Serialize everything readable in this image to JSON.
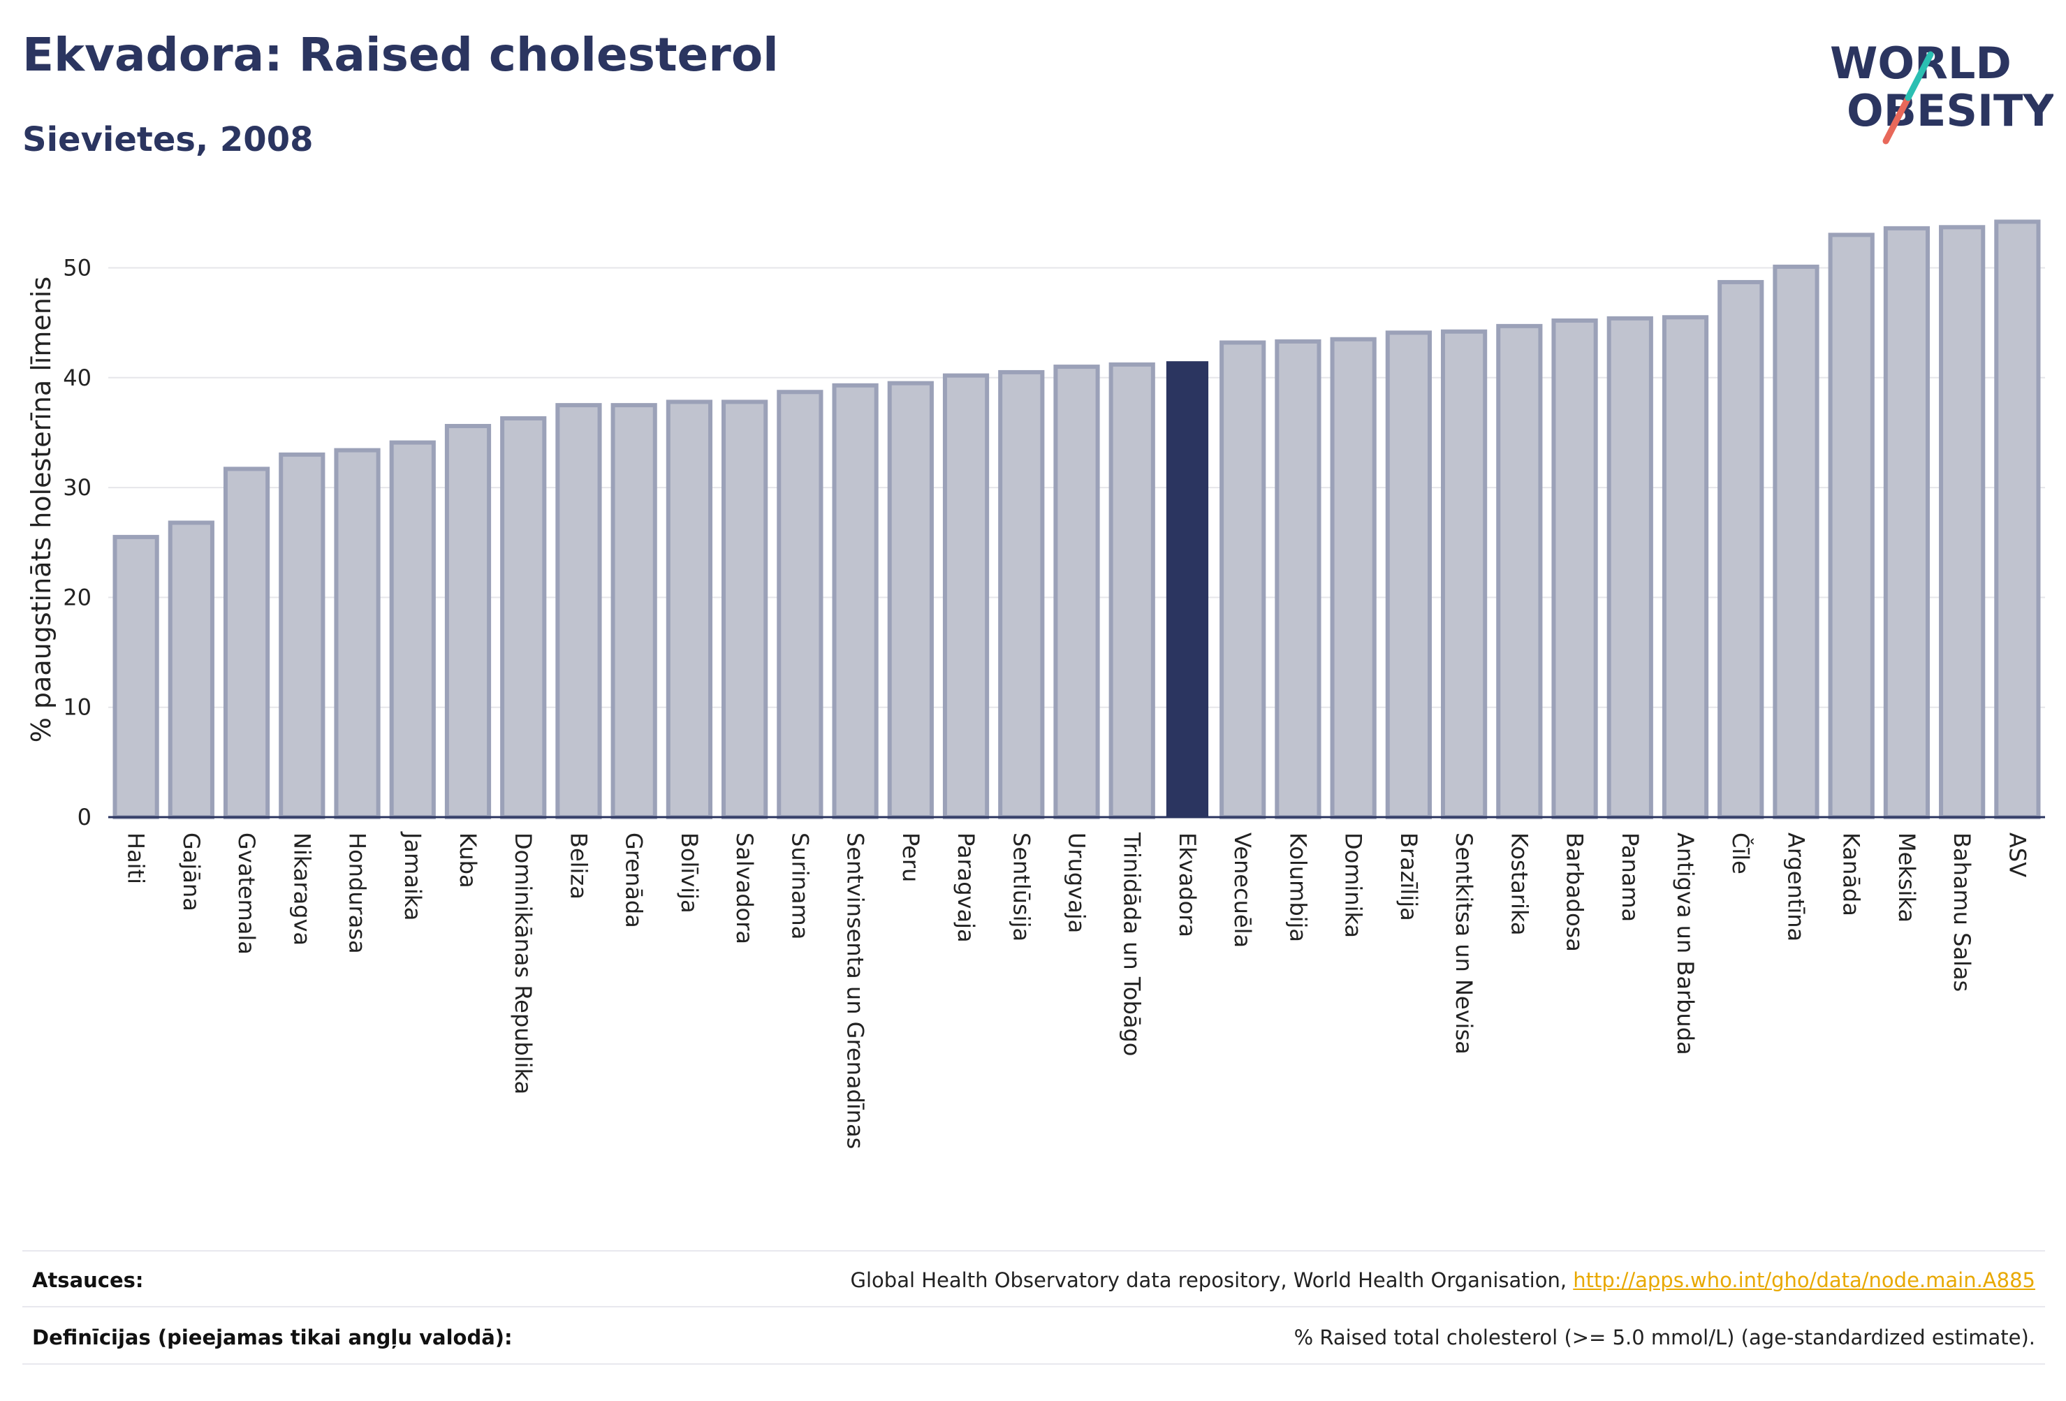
{
  "header": {
    "title": "Ekvadora: Raised cholesterol",
    "subtitle": "Sievietes, 2008"
  },
  "logo": {
    "line1": "WORLD",
    "line2": "OBESITY"
  },
  "colors": {
    "highlight": "#2b3560",
    "bar": "#c0c3cf",
    "bar_border": "#9ba1b8",
    "accent_teal": "#2bbfb2",
    "accent_coral": "#e8685a"
  },
  "chart_data": {
    "type": "bar",
    "ylabel": "% paaugstināts holesterīna līmenis",
    "ylim": [
      0,
      56
    ],
    "yticks": [
      0,
      10,
      20,
      30,
      40,
      50
    ],
    "grid": true,
    "highlight": "Ekvadora",
    "categories": [
      "Haiti",
      "Gajāna",
      "Gvatemala",
      "Nikaragva",
      "Hondurasa",
      "Jamaika",
      "Kuba",
      "Dominikānas Republika",
      "Beliza",
      "Grenāda",
      "Bolīvija",
      "Salvadora",
      "Surinama",
      "Sentvinsenta un Grenadīnas",
      "Peru",
      "Paragvaja",
      "Sentlūsija",
      "Urugvaja",
      "Trinidāda un Tobāgo",
      "Ekvadora",
      "Venecuēla",
      "Kolumbija",
      "Dominika",
      "Brazīlija",
      "Sentkitsa un Nevisa",
      "Kostarika",
      "Barbadosa",
      "Panama",
      "Antigva un Barbuda",
      "Čīle",
      "Argentīna",
      "Kanāda",
      "Meksika",
      "Bahamu Salas",
      "ASV"
    ],
    "values": [
      25.5,
      26.8,
      31.7,
      33.0,
      33.4,
      34.1,
      35.6,
      36.3,
      37.5,
      37.5,
      37.8,
      37.8,
      38.7,
      39.3,
      39.5,
      40.2,
      40.5,
      41.0,
      41.2,
      41.5,
      43.2,
      43.3,
      43.5,
      44.1,
      44.2,
      44.7,
      45.2,
      45.4,
      45.5,
      48.7,
      50.1,
      53.0,
      53.6,
      53.7,
      54.2
    ]
  },
  "footer": {
    "sources_label": "Atsauces:",
    "sources_text": "Global Health Observatory data repository, World Health Organisation, ",
    "sources_link": "http://apps.who.int/gho/data/node.main.A885",
    "definitions_label": "Definīcijas (pieejamas tikai angļu valodā):",
    "definitions_text": "% Raised total cholesterol (>= 5.0 mmol/L) (age-standardized estimate)."
  }
}
